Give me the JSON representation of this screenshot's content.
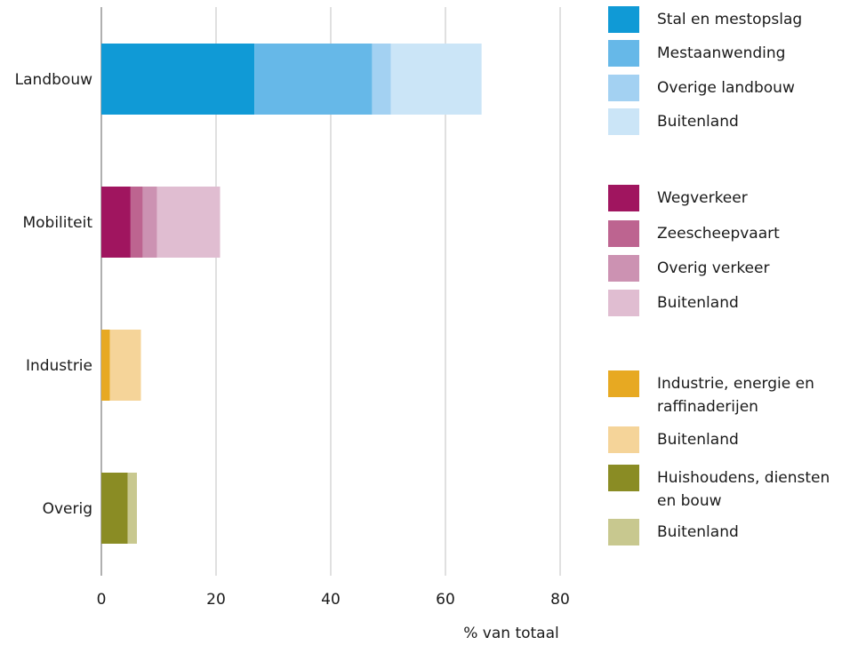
{
  "chart_data": {
    "type": "bar",
    "orientation": "horizontal",
    "stacked": true,
    "categories": [
      "Landbouw",
      "Mobiliteit",
      "Industrie",
      "Overig"
    ],
    "xlabel": "% van totaal",
    "xlim": [
      0,
      80
    ],
    "xticks": [
      "0",
      "20",
      "40",
      "60",
      "80"
    ],
    "grid": true,
    "legend_position": "right",
    "groups": [
      {
        "category": "Landbouw",
        "segments": [
          {
            "name": "Stal en mestopslag",
            "value": 26.7,
            "color": "#109ad6"
          },
          {
            "name": "Mestaanwending",
            "value": 20.5,
            "color": "#66b8e8"
          },
          {
            "name": "Overige landbouw",
            "value": 3.3,
            "color": "#a3d1f2"
          },
          {
            "name": "Buitenland",
            "value": 15.8,
            "color": "#cbe5f7"
          }
        ]
      },
      {
        "category": "Mobiliteit",
        "segments": [
          {
            "name": "Wegverkeer",
            "value": 5.1,
            "color": "#a0155f"
          },
          {
            "name": "Zeescheepvaart",
            "value": 2.1,
            "color": "#bd6490"
          },
          {
            "name": "Overig verkeer",
            "value": 2.5,
            "color": "#cc92b2"
          },
          {
            "name": "Buitenland",
            "value": 11.0,
            "color": "#e0bdd1"
          }
        ]
      },
      {
        "category": "Industrie",
        "segments": [
          {
            "name": "Industrie, energie en raffinaderijen",
            "value": 1.5,
            "color": "#e7a922"
          },
          {
            "name": "Buitenland",
            "value": 5.4,
            "color": "#f5d499"
          }
        ]
      },
      {
        "category": "Overig",
        "segments": [
          {
            "name": "Huishoudens, diensten en bouw",
            "value": 4.6,
            "color": "#8a8c24"
          },
          {
            "name": "Buitenland",
            "value": 1.6,
            "color": "#c8c88f"
          }
        ]
      }
    ]
  },
  "legend": [
    {
      "label": "Stal en mestopslag",
      "color": "#109ad6"
    },
    {
      "label": "Mestaanwending",
      "color": "#66b8e8"
    },
    {
      "label": "Overige landbouw",
      "color": "#a3d1f2"
    },
    {
      "label": "Buitenland",
      "color": "#cbe5f7"
    },
    {
      "label": "Wegverkeer",
      "color": "#a0155f"
    },
    {
      "label": "Zeescheepvaart",
      "color": "#bd6490"
    },
    {
      "label": "Overig verkeer",
      "color": "#cc92b2"
    },
    {
      "label": "Buitenland",
      "color": "#e0bdd1"
    },
    {
      "label": "Industrie, energie en raffinaderijen",
      "color": "#e7a922"
    },
    {
      "label": "Buitenland",
      "color": "#f5d499"
    },
    {
      "label": "Huishoudens, diensten en bouw",
      "color": "#8a8c24"
    },
    {
      "label": "Buitenland",
      "color": "#c8c88f"
    }
  ]
}
